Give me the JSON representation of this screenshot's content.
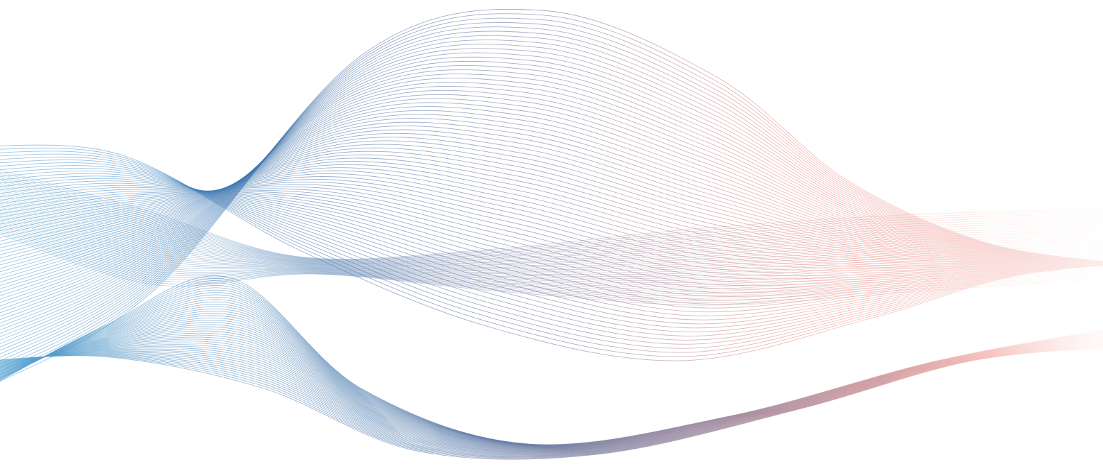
{
  "artwork": {
    "subject": "abstract-line-waves",
    "background_color": "#ffffff",
    "palette": {
      "cool": "#3a78b8",
      "mid": "#5a6a94",
      "warm": "#e8877d"
    },
    "bands": [
      {
        "name": "lower-left-blue-band",
        "line_count": 46
      },
      {
        "name": "large-crest-band",
        "line_count": 70
      },
      {
        "name": "flat-right-band",
        "line_count": 34
      }
    ]
  }
}
